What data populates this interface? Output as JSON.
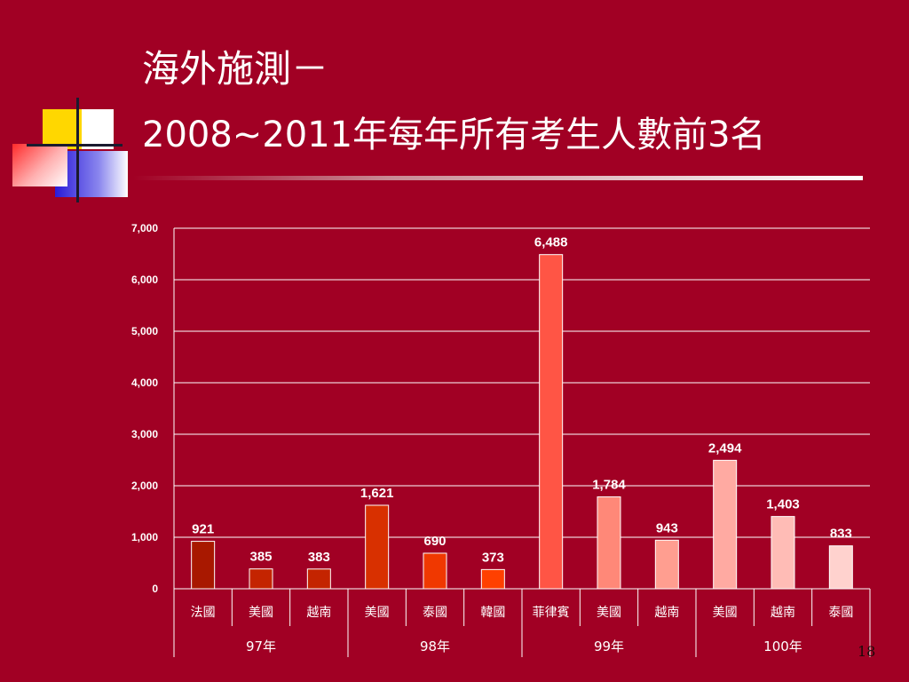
{
  "slide": {
    "title_line1": "海外施測－",
    "title_line2": "2008~2011年每年所有考生人數前3名",
    "page_number": "18"
  },
  "chart_data": {
    "type": "bar",
    "title": "",
    "xlabel": "",
    "ylabel": "",
    "ylim": [
      0,
      7000
    ],
    "yticks": [
      "0",
      "1,000",
      "2,000",
      "3,000",
      "4,000",
      "5,000",
      "6,000",
      "7,000"
    ],
    "grid": true,
    "categories": [
      "法國",
      "美國",
      "越南",
      "美國",
      "泰國",
      "韓國",
      "菲律賓",
      "美國",
      "越南",
      "美國",
      "越南",
      "泰國"
    ],
    "values": [
      921,
      385,
      383,
      1621,
      690,
      373,
      6488,
      1784,
      943,
      2494,
      1403,
      833
    ],
    "value_labels": [
      "921",
      "385",
      "383",
      "1,621",
      "690",
      "373",
      "6,488",
      "1,784",
      "943",
      "2,494",
      "1,403",
      "833"
    ],
    "bar_colors": [
      "#A81800",
      "#C42400",
      "#C42400",
      "#D83000",
      "#F03800",
      "#FF4000",
      "#FF5545",
      "#FF8878",
      "#FF9E90",
      "#FFAAA2",
      "#FFBCB6",
      "#FFD2CE"
    ],
    "groups": [
      {
        "label": "97年",
        "start": 0,
        "count": 3
      },
      {
        "label": "98年",
        "start": 3,
        "count": 3
      },
      {
        "label": "99年",
        "start": 6,
        "count": 3
      },
      {
        "label": "100年",
        "start": 9,
        "count": 3
      }
    ]
  }
}
